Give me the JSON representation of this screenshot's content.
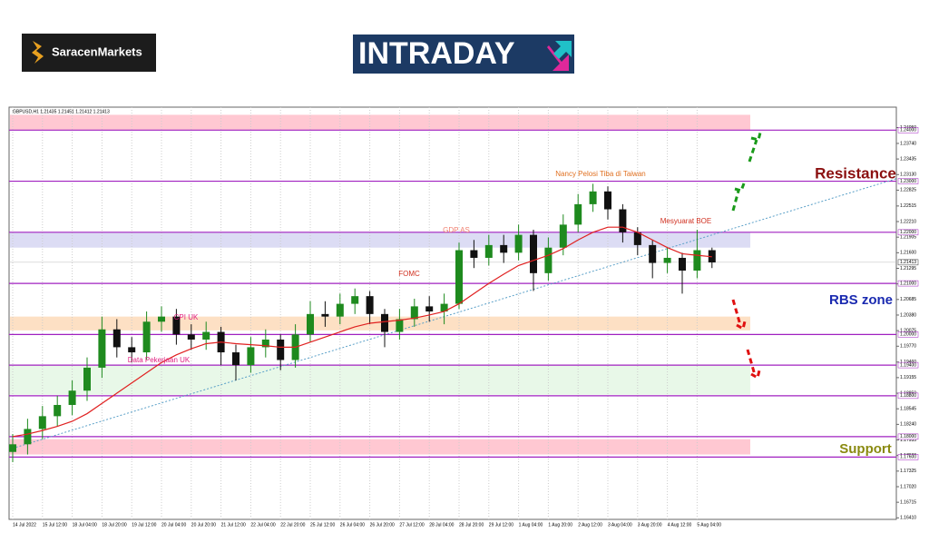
{
  "header": {
    "brand": "SaracenMarkets",
    "logo": "INTRADAY"
  },
  "chart_data": {
    "type": "candlestick",
    "title": "GBPUSD,H1 1.21435 1.21451 1.21412 1.21413",
    "up_color": "#1e8a1e",
    "down_color": "#111111",
    "ma_color": "#e02020",
    "trend_color": "#5aa0c8",
    "categories": [
      "14 Jul 2022",
      null,
      "15 Jul 12:00",
      null,
      "18 Jul 04:00",
      null,
      "18 Jul 20:00",
      null,
      "19 Jul 12:00",
      null,
      "20 Jul 04:00",
      null,
      "20 Jul 20:00",
      null,
      "21 Jul 12:00",
      null,
      "22 Jul 04:00",
      null,
      "22 Jul 20:00",
      null,
      "25 Jul 12:00",
      null,
      "26 Jul 04:00",
      null,
      "26 Jul 20:00",
      null,
      "27 Jul 12:00",
      null,
      "28 Jul 04:00",
      null,
      "28 Jul 20:00",
      null,
      "29 Jul 12:00",
      null,
      "1 Aug 04:00",
      null,
      "1 Aug 20:00",
      null,
      "2 Aug 12:00",
      null,
      "3 Aug 04:00",
      null,
      "3 Aug 20:00",
      null,
      "4 Aug 12:00",
      null,
      "5 Aug 04:00",
      null
    ],
    "open": [
      1.177,
      1.1785,
      1.1815,
      1.184,
      1.1862,
      1.189,
      1.1935,
      1.201,
      1.1975,
      1.1965,
      1.2025,
      1.2035,
      1.2,
      1.199,
      1.2005,
      1.1965,
      1.194,
      1.1975,
      1.199,
      1.195,
      1.2,
      1.204,
      1.2035,
      1.206,
      1.2075,
      1.204,
      1.2005,
      1.203,
      1.2055,
      1.2045,
      1.206,
      1.2165,
      1.215,
      1.2175,
      1.216,
      1.2195,
      1.212,
      1.217,
      1.2215,
      1.2255,
      1.228,
      1.2245,
      1.22,
      1.2175,
      1.214,
      1.215,
      1.2125,
      1.2165
    ],
    "high": [
      1.1805,
      1.1835,
      1.186,
      1.188,
      1.191,
      1.1955,
      1.2035,
      1.203,
      1.1995,
      1.2045,
      1.2055,
      1.205,
      1.202,
      1.2025,
      1.2015,
      1.198,
      1.1995,
      1.201,
      1.2,
      1.202,
      1.2065,
      1.2065,
      1.208,
      1.209,
      1.2085,
      1.205,
      1.205,
      1.207,
      1.2075,
      1.208,
      1.218,
      1.2185,
      1.2195,
      1.2195,
      1.2215,
      1.2205,
      1.219,
      1.2235,
      1.2275,
      1.2295,
      1.229,
      1.2255,
      1.221,
      1.2185,
      1.217,
      1.216,
      1.2205,
      1.217
    ],
    "low": [
      1.175,
      1.1765,
      1.1795,
      1.182,
      1.1842,
      1.187,
      1.1915,
      1.1955,
      1.1945,
      1.195,
      1.2005,
      1.198,
      1.197,
      1.197,
      1.194,
      1.191,
      1.1925,
      1.1955,
      1.193,
      1.1935,
      1.1985,
      1.2015,
      1.202,
      1.204,
      1.202,
      1.1975,
      1.199,
      1.2015,
      1.2025,
      1.202,
      1.205,
      1.213,
      1.2135,
      1.214,
      1.2145,
      1.2085,
      1.2105,
      1.2155,
      1.22,
      1.224,
      1.2225,
      1.218,
      1.2155,
      1.211,
      1.212,
      1.208,
      1.211,
      1.213
    ],
    "close": [
      1.1785,
      1.1815,
      1.184,
      1.1862,
      1.189,
      1.1935,
      1.201,
      1.1975,
      1.1965,
      1.2025,
      1.2035,
      1.2,
      1.199,
      1.2005,
      1.1965,
      1.194,
      1.1975,
      1.199,
      1.195,
      1.2,
      1.204,
      1.2035,
      1.206,
      1.2075,
      1.204,
      1.2005,
      1.203,
      1.2055,
      1.2045,
      1.206,
      1.2165,
      1.215,
      1.2175,
      1.216,
      1.2195,
      1.212,
      1.217,
      1.2215,
      1.2255,
      1.228,
      1.2245,
      1.22,
      1.2175,
      1.214,
      1.215,
      1.2125,
      1.2165,
      1.2141
    ],
    "ma": [
      1.18,
      1.1805,
      1.1812,
      1.182,
      1.183,
      1.1845,
      1.1865,
      1.1885,
      1.1905,
      1.1925,
      1.1945,
      1.196,
      1.1972,
      1.1982,
      1.1985,
      1.1982,
      1.198,
      1.1978,
      1.1975,
      1.1975,
      1.1985,
      1.1995,
      1.2005,
      1.2015,
      1.2022,
      1.2025,
      1.2028,
      1.2032,
      1.2038,
      1.2045,
      1.206,
      1.208,
      1.21,
      1.2118,
      1.2135,
      1.2145,
      1.2155,
      1.2168,
      1.2185,
      1.22,
      1.221,
      1.221,
      1.22,
      1.2185,
      1.217,
      1.2158,
      1.2155,
      1.2152
    ],
    "trendline": [
      1.1775,
      1.2305
    ],
    "ylim": [
      1.1638,
      1.2445
    ],
    "yticks": [
      {
        "value": 1.2405,
        "label": "1.24050"
      },
      {
        "value": 1.2374,
        "label": "1.23740"
      },
      {
        "value": 1.23435,
        "label": "1.23435"
      },
      {
        "value": 1.2313,
        "label": "1.23130"
      },
      {
        "value": 1.22825,
        "label": "1.22825"
      },
      {
        "value": 1.22515,
        "label": "1.22515"
      },
      {
        "value": 1.2221,
        "label": "1.22210"
      },
      {
        "value": 1.21905,
        "label": "1.21905"
      },
      {
        "value": 1.216,
        "label": "1.21600"
      },
      {
        "value": 1.21295,
        "label": "1.21295"
      },
      {
        "value": 1.2099,
        "label": "1.20990"
      },
      {
        "value": 1.20685,
        "label": "1.20685"
      },
      {
        "value": 1.2038,
        "label": "1.20380"
      },
      {
        "value": 1.20075,
        "label": "1.20075"
      },
      {
        "value": 1.1977,
        "label": "1.19770"
      },
      {
        "value": 1.1946,
        "label": "1.19460"
      },
      {
        "value": 1.19155,
        "label": "1.19155"
      },
      {
        "value": 1.1885,
        "label": "1.18850"
      },
      {
        "value": 1.18545,
        "label": "1.18545"
      },
      {
        "value": 1.1824,
        "label": "1.18240"
      },
      {
        "value": 1.17935,
        "label": "1.17935"
      },
      {
        "value": 1.1763,
        "label": "1.17630"
      },
      {
        "value": 1.17325,
        "label": "1.17325"
      },
      {
        "value": 1.1702,
        "label": "1.17020"
      },
      {
        "value": 1.16715,
        "label": "1.16715"
      },
      {
        "value": 1.1641,
        "label": "1.16410"
      }
    ],
    "levels": [
      {
        "value": 1.24,
        "label": "1.24000"
      },
      {
        "value": 1.23,
        "label": "1.23000"
      },
      {
        "value": 1.22,
        "label": "1.22000"
      },
      {
        "value": 1.21,
        "label": "1.21000"
      },
      {
        "value": 1.2,
        "label": "1.20000"
      },
      {
        "value": 1.194,
        "label": "1.19400"
      },
      {
        "value": 1.188,
        "label": "1.18800"
      },
      {
        "value": 1.18,
        "label": "1.18000"
      },
      {
        "value": 1.176,
        "label": "1.17600"
      }
    ],
    "level_color": "#a020c0",
    "current": {
      "value": 1.21413,
      "label": "1.21413"
    },
    "zones": [
      {
        "from": 1.24,
        "to": 1.243,
        "color": "#ffc8d2"
      },
      {
        "from": 1.217,
        "to": 1.22,
        "color": "#dcdcf4"
      },
      {
        "from": 1.2008,
        "to": 1.2035,
        "color": "#fde0c4"
      },
      {
        "from": 1.1882,
        "to": 1.194,
        "color": "#e8f8e8"
      },
      {
        "from": 1.1765,
        "to": 1.1795,
        "color": "#ffc8d2"
      }
    ],
    "annotations": [
      "Nancy Pelosi Tiba di Taiwan",
      "Mesyuarat BOE",
      "GDP AS",
      "FOMC",
      "CPI UK",
      "Data Pekerjaan UK"
    ],
    "zone_labels": [
      "Resistance",
      "RBS zone",
      "Support"
    ]
  }
}
